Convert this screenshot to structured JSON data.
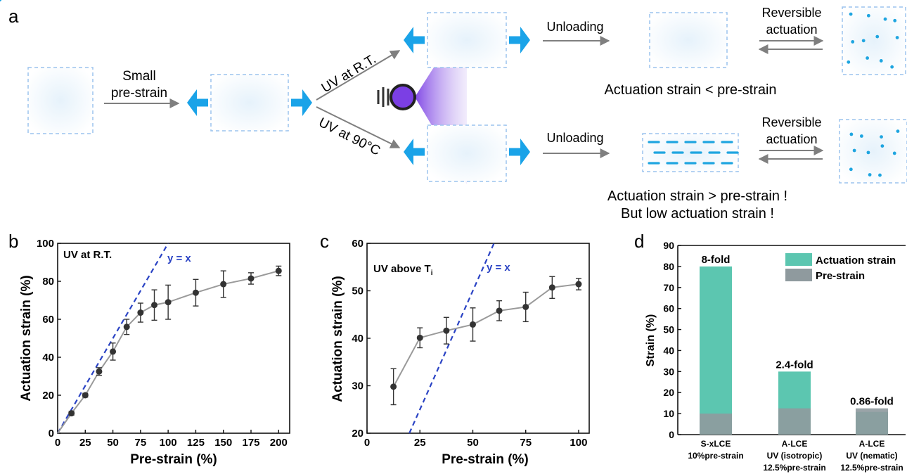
{
  "panel_a": {
    "label": "a",
    "small_label_1": "Small",
    "small_label_2": "pre-strain",
    "uv_rt": "UV at R.T.",
    "uv_90": "UV at 90°C",
    "unloading_top": "Unloading",
    "unloading_bottom": "Unloading",
    "reversible_top_1": "Reversible",
    "reversible_top_2": "actuation",
    "reversible_bottom_1": "Reversible",
    "reversible_bottom_2": "actuation",
    "result_top": "Actuation strain < pre-strain",
    "result_bottom_1": "Actuation strain > pre-strain !",
    "result_bottom_2": "But low actuation strain !",
    "colors": {
      "mesogen": "#1ea5e0",
      "arrow_blue": "#1aa3e8",
      "uv_purple": "#7b3fe4"
    }
  },
  "chart_data": [
    {
      "panel": "b",
      "type": "line",
      "annotation": "UV at R.T.",
      "reference_line_label": "y = x",
      "xlabel": "Pre-strain (%)",
      "ylabel": "Actuation strain (%)",
      "xlim": [
        0,
        210
      ],
      "ylim": [
        0,
        100
      ],
      "xticks": [
        0,
        25,
        50,
        75,
        100,
        125,
        150,
        175,
        200
      ],
      "yticks": [
        0,
        20,
        40,
        60,
        80,
        100
      ],
      "x": [
        12.5,
        25,
        37.5,
        50,
        62.5,
        75,
        87.5,
        100,
        125,
        150,
        175,
        200
      ],
      "y": [
        10.5,
        20,
        32.5,
        43,
        56,
        63.5,
        67.5,
        69,
        74,
        78.5,
        81.5,
        85.5
      ],
      "yerr": [
        1,
        1,
        2,
        4.5,
        4,
        5,
        8,
        9,
        7,
        7,
        3,
        2.5
      ]
    },
    {
      "panel": "c",
      "type": "line",
      "annotation": "UV above T",
      "annotation_sub": "i",
      "reference_line_label": "y = x",
      "xlabel": "Pre-strain (%)",
      "ylabel": "Actuation strain (%)",
      "xlim": [
        0,
        105
      ],
      "ylim": [
        20,
        60
      ],
      "xticks": [
        0,
        25,
        50,
        75,
        100
      ],
      "yticks": [
        20,
        30,
        40,
        50,
        60
      ],
      "x": [
        12.5,
        25,
        37.5,
        50,
        62.5,
        75,
        87.5,
        100
      ],
      "y": [
        29.8,
        40.1,
        41.6,
        42.9,
        45.8,
        46.6,
        50.7,
        51.4
      ],
      "yerr": [
        3.8,
        2.1,
        2.8,
        3.5,
        2.1,
        3.1,
        2.3,
        1.2
      ]
    },
    {
      "panel": "d",
      "type": "bar",
      "ylabel": "Strain (%)",
      "ylim": [
        0,
        90
      ],
      "yticks": [
        0,
        10,
        20,
        30,
        40,
        50,
        60,
        70,
        80,
        90
      ],
      "legend": [
        "Actuation strain",
        "Pre-strain"
      ],
      "legend_position": "top-right",
      "series_colors": {
        "actuation": "#5cc6b0",
        "prestrain": "#8f9a9e"
      },
      "categories": [
        {
          "line1": "S-xLCE",
          "line2": "10%pre-strain",
          "line3": ""
        },
        {
          "line1": "A-LCE",
          "line2": "UV (isotropic)",
          "line3": "12.5%pre-strain"
        },
        {
          "line1": "A-LCE",
          "line2": "UV (nematic)",
          "line3": "12.5%pre-strain"
        }
      ],
      "actuation": [
        80,
        30,
        10.8
      ],
      "prestrain": [
        10,
        12.5,
        12.5
      ],
      "fold_labels": [
        "8-fold",
        "2.4-fold",
        "0.86-fold"
      ]
    }
  ]
}
